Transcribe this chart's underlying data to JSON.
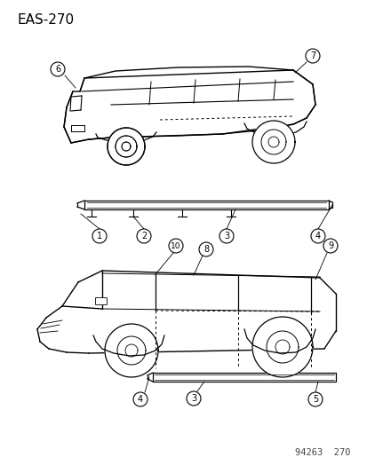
{
  "title": "EAS-270",
  "footer": "94263  270",
  "bg_color": "#ffffff",
  "title_fontsize": 11,
  "footer_fontsize": 7.5,
  "line_color": "#000000"
}
